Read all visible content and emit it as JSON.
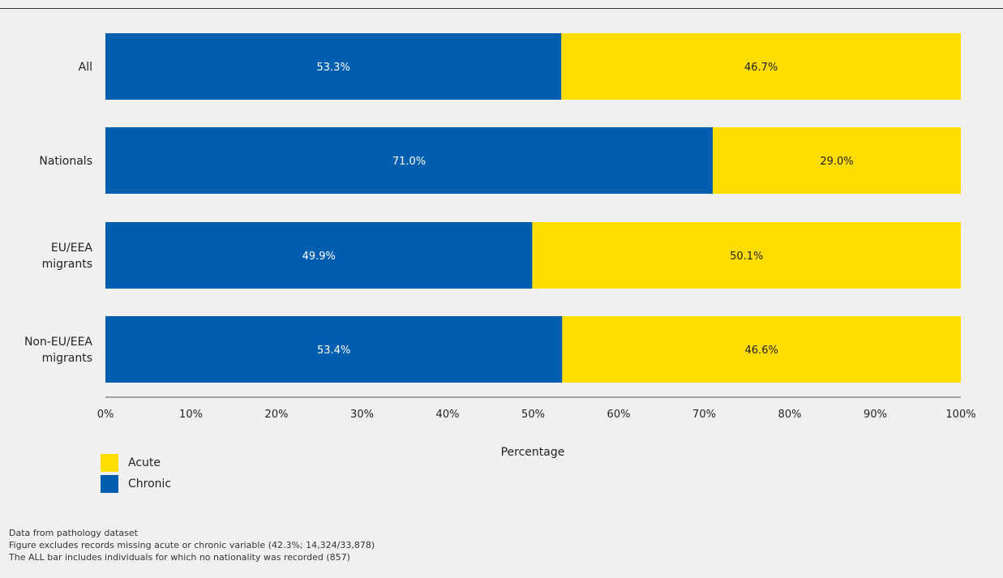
{
  "colors": {
    "acute": "#FFDD00",
    "chronic": "#005EB0",
    "chronic_label": "#ffffff",
    "acute_label": "#222222"
  },
  "chart_data": {
    "type": "bar",
    "orientation": "horizontal",
    "stacked": true,
    "categories": [
      [
        "All"
      ],
      [
        "Nationals"
      ],
      [
        "EU/EEA",
        "migrants"
      ],
      [
        "Non-EU/EEA",
        "migrants"
      ]
    ],
    "series": [
      {
        "name": "Chronic",
        "values": [
          53.3,
          71.0,
          49.9,
          53.4
        ],
        "labels": [
          "53.3%",
          "71.0%",
          "49.9%",
          "53.4%"
        ]
      },
      {
        "name": "Acute",
        "values": [
          46.7,
          29.0,
          50.1,
          46.6
        ],
        "labels": [
          "46.7%",
          "29.0%",
          "50.1%",
          "46.6%"
        ]
      }
    ],
    "xlim": [
      0,
      100
    ],
    "xticks": [
      "0%",
      "10%",
      "20%",
      "30%",
      "40%",
      "50%",
      "60%",
      "70%",
      "80%",
      "90%",
      "100%"
    ],
    "xlabel": "Percentage",
    "ylabel": "",
    "grid": false,
    "legend_position": "bottom-left"
  },
  "legend": [
    {
      "label": "Acute",
      "color": "#FFDD00"
    },
    {
      "label": "Chronic",
      "color": "#005EB0"
    }
  ],
  "notes": [
    "Data from pathology dataset",
    "Figure excludes records missing acute or chronic variable (42.3%; 14,324/33,878)",
    "The ALL bar includes individuals for which no nationality was recorded (857)"
  ]
}
